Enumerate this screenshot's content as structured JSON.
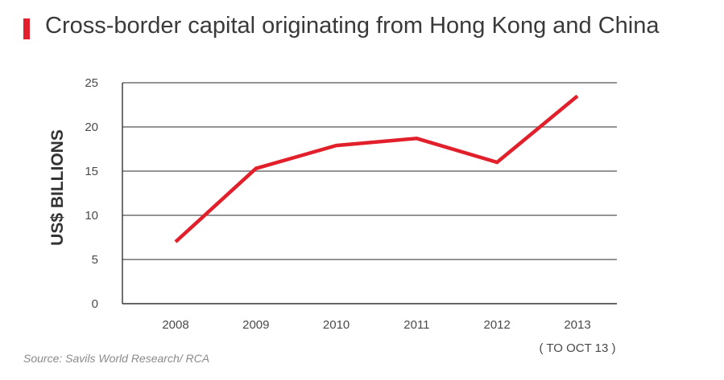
{
  "title": "Cross-border capital originating from Hong Kong and China",
  "source": "Source: Savils World Research/ RCA",
  "colors": {
    "accent": "#e2202b",
    "grid": "#555555",
    "text": "#4a4a4a"
  },
  "chart_data": {
    "type": "line",
    "categories": [
      "2008",
      "2009",
      "2010",
      "2011",
      "2012",
      "2013"
    ],
    "category_note": "( TO OCT 13 )",
    "series": [
      {
        "values": [
          7.0,
          15.3,
          17.9,
          18.7,
          16.0,
          23.5
        ]
      }
    ],
    "ylabel": "US$ BILLIONS",
    "ylim": [
      0,
      25
    ],
    "yticks": [
      0,
      5,
      10,
      15,
      20,
      25
    ],
    "grid": true,
    "legend": "none"
  }
}
